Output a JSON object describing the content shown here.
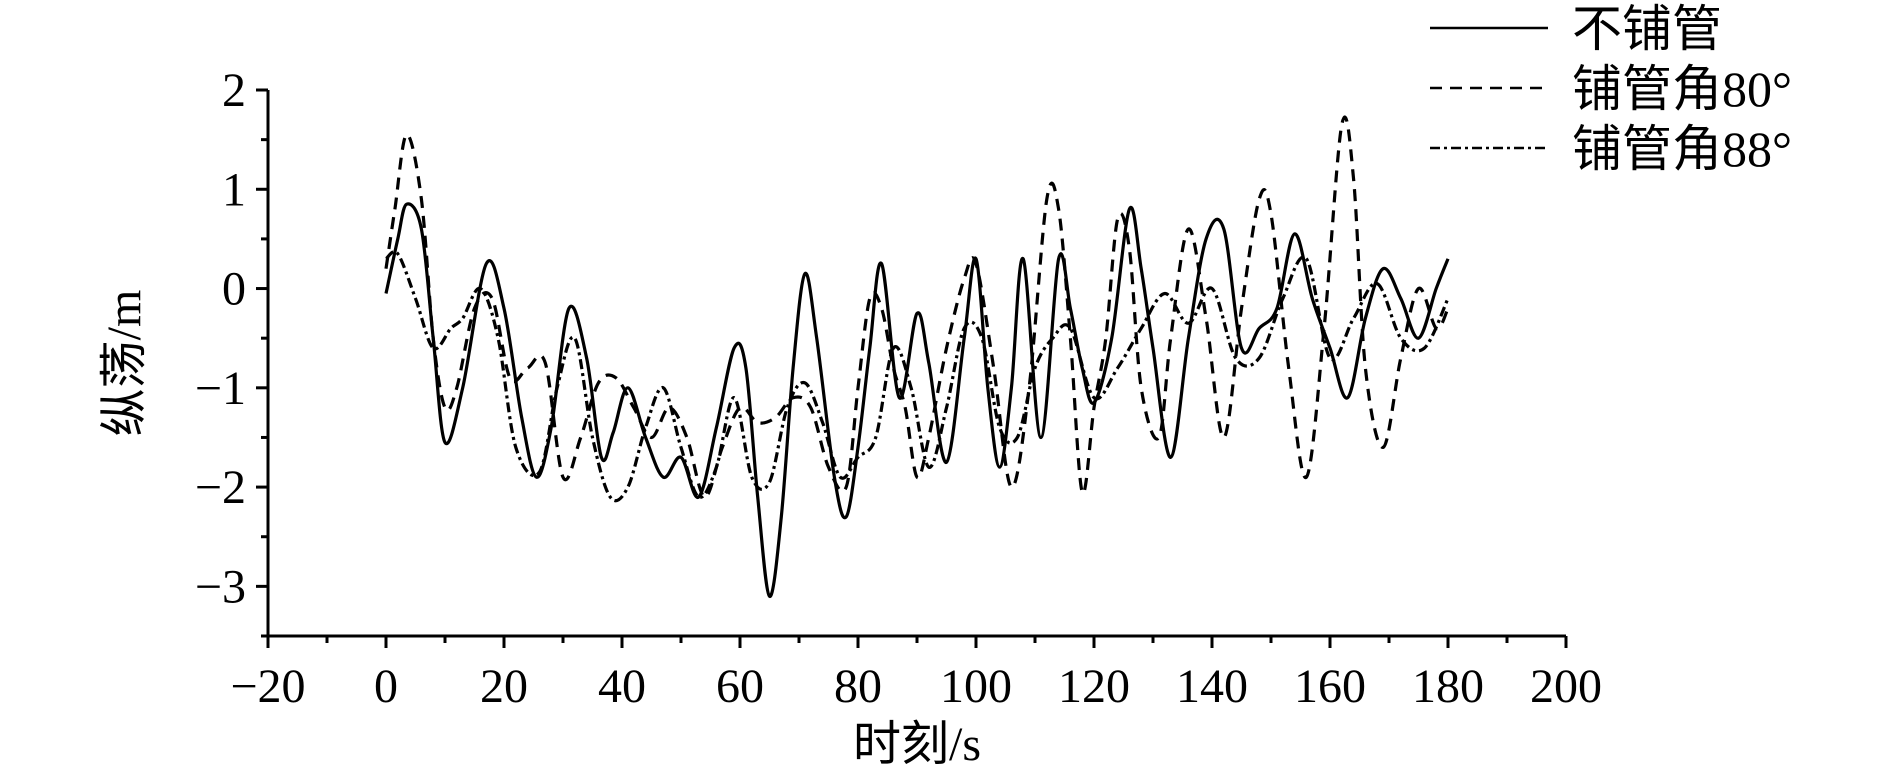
{
  "chart_data": {
    "type": "line",
    "title": "",
    "xlabel": "时刻/s",
    "ylabel": "纵荡/m",
    "xlim": [
      -20,
      200
    ],
    "ylim": [
      -3.5,
      2
    ],
    "xticks": [
      -20,
      0,
      20,
      40,
      60,
      80,
      100,
      120,
      140,
      160,
      180,
      200
    ],
    "xtick_labels": [
      "−20",
      "0",
      "20",
      "40",
      "60",
      "80",
      "100",
      "120",
      "140",
      "160",
      "180",
      "200"
    ],
    "yticks": [
      -3,
      -2,
      -1,
      0,
      1,
      2
    ],
    "ytick_labels": [
      "−3",
      "−2",
      "−1",
      "0",
      "1",
      "2"
    ],
    "grid": false,
    "legend_position": "top-right",
    "series": [
      {
        "name": "不铺管",
        "dash": "solid",
        "x": [
          0,
          2,
          3.5,
          6,
          8,
          10,
          13,
          17,
          20,
          23,
          25.5,
          28,
          31,
          34,
          36.5,
          38.5,
          41,
          44,
          47,
          50,
          53,
          56,
          59,
          61,
          63,
          65,
          67,
          69,
          71,
          73,
          76,
          78,
          80,
          82,
          84,
          87,
          90,
          92,
          95,
          98,
          100,
          102,
          104,
          106,
          108,
          111,
          114,
          116,
          118,
          120,
          123,
          126,
          128,
          130,
          133,
          136,
          139,
          142,
          145,
          148,
          151,
          154,
          157,
          160,
          163,
          166,
          169,
          172,
          175,
          178,
          180
        ],
        "y": [
          -0.05,
          0.5,
          0.85,
          0.6,
          -0.5,
          -1.55,
          -1.0,
          0.25,
          -0.2,
          -1.3,
          -1.9,
          -1.4,
          -0.2,
          -0.7,
          -1.7,
          -1.45,
          -1.0,
          -1.5,
          -1.9,
          -1.7,
          -2.1,
          -1.4,
          -0.6,
          -0.8,
          -2.1,
          -3.1,
          -2.3,
          -0.8,
          0.15,
          -0.5,
          -1.9,
          -2.3,
          -1.6,
          -0.6,
          0.25,
          -1.1,
          -0.25,
          -0.75,
          -1.75,
          -0.5,
          0.3,
          -1.0,
          -1.8,
          -1.0,
          0.3,
          -1.5,
          0.3,
          -0.2,
          -0.8,
          -1.15,
          -0.5,
          0.8,
          0.2,
          -0.6,
          -1.7,
          -0.5,
          0.5,
          0.6,
          -0.6,
          -0.4,
          -0.2,
          0.55,
          -0.1,
          -0.6,
          -1.1,
          -0.3,
          0.2,
          -0.1,
          -0.5,
          0.0,
          0.3
        ]
      },
      {
        "name": "铺管角80°",
        "dash": "12,8",
        "x": [
          0,
          1.5,
          3.5,
          6,
          8,
          10,
          12,
          15,
          18,
          21,
          24,
          27,
          30,
          33,
          36,
          39,
          42,
          45,
          48,
          51,
          54,
          57,
          60,
          63,
          66,
          69,
          72,
          75,
          78,
          80,
          82,
          84,
          86,
          88,
          90,
          92,
          95,
          98,
          100,
          103,
          106,
          109,
          112,
          114,
          116,
          118,
          120,
          122,
          124,
          126,
          128,
          131,
          133,
          136,
          139,
          142,
          145,
          148,
          150,
          153,
          156,
          159,
          162,
          164,
          166,
          169,
          172,
          175,
          178,
          180
        ],
        "y": [
          0.2,
          0.8,
          1.55,
          0.9,
          -0.5,
          -1.2,
          -1.0,
          -0.2,
          -0.1,
          -0.9,
          -0.8,
          -0.75,
          -1.9,
          -1.5,
          -0.95,
          -0.9,
          -1.2,
          -1.5,
          -1.2,
          -1.5,
          -2.1,
          -1.6,
          -1.2,
          -1.35,
          -1.3,
          -1.1,
          -1.2,
          -1.8,
          -2.0,
          -1.0,
          -0.1,
          -0.2,
          -0.8,
          -1.2,
          -1.9,
          -1.5,
          -0.6,
          0.1,
          0.25,
          -0.8,
          -2.0,
          -1.0,
          0.9,
          0.8,
          -0.5,
          -2.05,
          -1.2,
          -0.5,
          0.7,
          0.4,
          -1.0,
          -1.5,
          -0.5,
          0.6,
          -0.3,
          -1.5,
          -0.2,
          0.9,
          0.75,
          -0.8,
          -1.9,
          -0.4,
          1.65,
          1.1,
          -0.8,
          -1.6,
          -0.7,
          0.0,
          -0.4,
          -0.2
        ]
      },
      {
        "name": "铺管角88°",
        "dash": "10,4,3,4",
        "x": [
          0,
          2,
          5,
          8,
          11,
          13,
          16,
          19,
          22,
          26,
          29,
          32,
          35,
          38,
          41,
          44,
          47,
          50,
          53,
          56,
          59,
          62,
          65,
          68,
          71,
          74,
          77,
          80,
          83,
          86,
          89,
          92,
          95,
          98,
          101,
          104,
          107,
          110,
          113,
          116,
          120,
          124,
          128,
          132,
          136,
          140,
          144,
          148,
          152,
          156,
          160,
          164,
          168,
          172,
          176,
          180
        ],
        "y": [
          0.3,
          0.35,
          -0.1,
          -0.6,
          -0.4,
          -0.3,
          0.0,
          -0.5,
          -1.6,
          -1.85,
          -1.0,
          -0.5,
          -1.5,
          -2.1,
          -2.0,
          -1.4,
          -1.0,
          -1.6,
          -2.1,
          -1.8,
          -1.1,
          -1.9,
          -1.95,
          -1.2,
          -0.95,
          -1.35,
          -1.9,
          -1.7,
          -1.5,
          -0.6,
          -1.0,
          -1.8,
          -1.2,
          -0.4,
          -0.5,
          -1.4,
          -1.5,
          -0.8,
          -0.5,
          -0.4,
          -1.1,
          -0.8,
          -0.4,
          -0.05,
          -0.35,
          0.0,
          -0.7,
          -0.7,
          -0.1,
          0.3,
          -0.7,
          -0.3,
          0.05,
          -0.5,
          -0.6,
          -0.1
        ]
      }
    ]
  }
}
